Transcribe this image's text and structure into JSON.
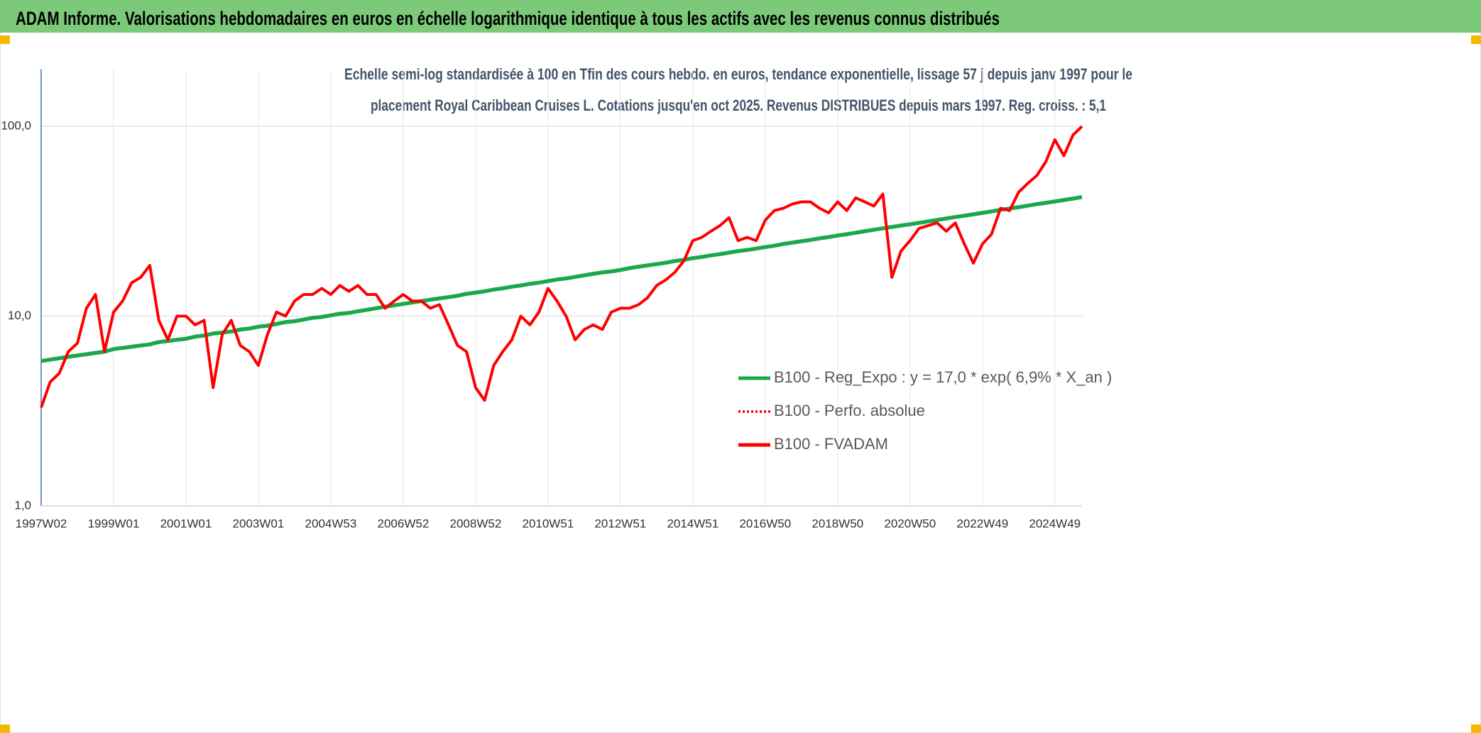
{
  "header": {
    "title": "ADAM Informe. Valorisations hebdomadaires en euros en échelle logarithmique identique à tous les actifs avec les revenus connus distribués"
  },
  "chart_data": {
    "type": "line",
    "title": [
      "Echelle semi-log standardisée à 100 en Tfin des cours hebdo. en euros, tendance exponentielle, lissage 57 j depuis janv 1997 pour le",
      "placement Royal Caribbean Cruises L. Cotations jusqu'en oct 2025. Revenus DISTRIBUES depuis mars 1997. Reg. croiss. : 5,1"
    ],
    "categories": [
      "1997W02",
      null,
      null,
      null,
      null,
      null,
      null,
      null,
      "1999W01",
      null,
      null,
      null,
      null,
      null,
      null,
      null,
      "2001W01",
      null,
      null,
      null,
      null,
      null,
      null,
      null,
      "2003W01",
      null,
      null,
      null,
      null,
      null,
      null,
      null,
      "2004W53",
      null,
      null,
      null,
      null,
      null,
      null,
      null,
      "2006W52",
      null,
      null,
      null,
      null,
      null,
      null,
      null,
      "2008W52",
      null,
      null,
      null,
      null,
      null,
      null,
      null,
      "2010W51",
      null,
      null,
      null,
      null,
      null,
      null,
      null,
      "2012W51",
      null,
      null,
      null,
      null,
      null,
      null,
      null,
      "2014W51",
      null,
      null,
      null,
      null,
      null,
      null,
      null,
      "2016W50",
      null,
      null,
      null,
      null,
      null,
      null,
      null,
      "2018W50",
      null,
      null,
      null,
      null,
      null,
      null,
      null,
      "2020W50",
      null,
      null,
      null,
      null,
      null,
      null,
      null,
      "2022W49",
      null,
      null,
      null,
      null,
      null,
      null,
      null,
      "2024W49",
      null,
      null,
      null
    ],
    "series": [
      {
        "name": "B100 - Reg_Expo : y = 17,0 * exp( 6,9% *  X_an )",
        "color": "#1aa84b",
        "style": "solid",
        "values": [
          5.8,
          5.9,
          6.0,
          6.1,
          6.2,
          6.3,
          6.4,
          6.5,
          6.7,
          6.8,
          6.9,
          7.0,
          7.1,
          7.3,
          7.4,
          7.5,
          7.6,
          7.8,
          7.9,
          8.1,
          8.2,
          8.3,
          8.5,
          8.6,
          8.8,
          8.9,
          9.1,
          9.3,
          9.4,
          9.6,
          9.8,
          9.9,
          10.1,
          10.3,
          10.4,
          10.6,
          10.8,
          11.0,
          11.2,
          11.4,
          11.6,
          11.8,
          12.0,
          12.2,
          12.4,
          12.6,
          12.8,
          13.1,
          13.3,
          13.5,
          13.8,
          14.0,
          14.3,
          14.5,
          14.8,
          15.0,
          15.3,
          15.6,
          15.8,
          16.1,
          16.4,
          16.7,
          17.0,
          17.2,
          17.5,
          17.9,
          18.2,
          18.5,
          18.8,
          19.1,
          19.5,
          19.8,
          20.2,
          20.5,
          20.9,
          21.2,
          21.6,
          22.0,
          22.3,
          22.7,
          23.1,
          23.5,
          24.0,
          24.4,
          24.8,
          25.2,
          25.7,
          26.1,
          26.6,
          27.0,
          27.5,
          28.0,
          28.5,
          29.0,
          29.5,
          30.0,
          30.5,
          31.0,
          31.6,
          32.1,
          32.7,
          33.3,
          33.8,
          34.4,
          35.0,
          35.6,
          36.3,
          36.9,
          37.5,
          38.2,
          38.9,
          39.5,
          40.2,
          40.9,
          41.6,
          42.4
        ]
      },
      {
        "name": "B100 - Perfo. absolue",
        "color": "#ff0000",
        "style": "dotted",
        "values": [
          3.3,
          4.5,
          5.0,
          6.5,
          7.2,
          11,
          13,
          6.5,
          10.5,
          12,
          15,
          16,
          18.5,
          9.5,
          7.5,
          10,
          10,
          9.0,
          9.5,
          4.2,
          8,
          9.5,
          7,
          6.5,
          5.5,
          8,
          10.5,
          10,
          12,
          13,
          13,
          14,
          13,
          14.5,
          13.5,
          14.5,
          13,
          13,
          11,
          12,
          13,
          12,
          12,
          11,
          11.5,
          9,
          7,
          6.5,
          4.2,
          3.6,
          5.5,
          6.5,
          7.5,
          10,
          9,
          10.5,
          14,
          12,
          10,
          7.5,
          8.5,
          9,
          8.5,
          10.5,
          11,
          11,
          11.5,
          12.5,
          14.5,
          15.5,
          17,
          19.5,
          25,
          26,
          28,
          30,
          33,
          25,
          26,
          25,
          32,
          36,
          37,
          39,
          40,
          40,
          37,
          35,
          40,
          36,
          42,
          40,
          38,
          44,
          16,
          22,
          25,
          29,
          30,
          31,
          28,
          31,
          24,
          19,
          24,
          27,
          37,
          36,
          45,
          50,
          55,
          65,
          85,
          70,
          90,
          100
        ]
      },
      {
        "name": "B100 - FVADAM",
        "color": "#ff0000",
        "style": "solid",
        "values": [
          3.3,
          4.5,
          5.0,
          6.5,
          7.2,
          11,
          13,
          6.5,
          10.5,
          12,
          15,
          16,
          18.5,
          9.5,
          7.5,
          10,
          10,
          9.0,
          9.5,
          4.2,
          8,
          9.5,
          7,
          6.5,
          5.5,
          8,
          10.5,
          10,
          12,
          13,
          13,
          14,
          13,
          14.5,
          13.5,
          14.5,
          13,
          13,
          11,
          12,
          13,
          12,
          12,
          11,
          11.5,
          9,
          7,
          6.5,
          4.2,
          3.6,
          5.5,
          6.5,
          7.5,
          10,
          9,
          10.5,
          14,
          12,
          10,
          7.5,
          8.5,
          9,
          8.5,
          10.5,
          11,
          11,
          11.5,
          12.5,
          14.5,
          15.5,
          17,
          19.5,
          25,
          26,
          28,
          30,
          33,
          25,
          26,
          25,
          32,
          36,
          37,
          39,
          40,
          40,
          37,
          35,
          40,
          36,
          42,
          40,
          38,
          44,
          16,
          22,
          25,
          29,
          30,
          31,
          28,
          31,
          24,
          19,
          24,
          27,
          37,
          36,
          45,
          50,
          55,
          65,
          85,
          70,
          90,
          100
        ]
      }
    ],
    "ylim": [
      1,
      200
    ],
    "log_y": true,
    "yticks": [
      {
        "value": 1,
        "label": "1,0"
      },
      {
        "value": 10,
        "label": "10,0"
      },
      {
        "value": 100,
        "label": "100,0"
      }
    ],
    "grid": true,
    "legend": "right"
  }
}
